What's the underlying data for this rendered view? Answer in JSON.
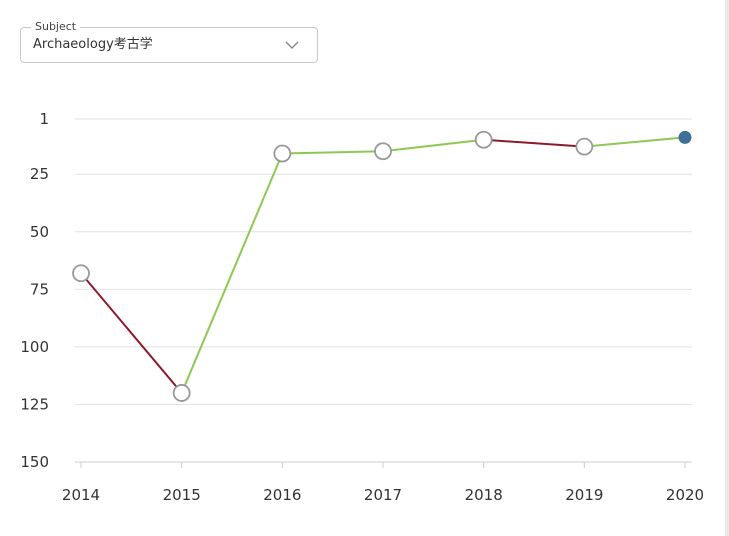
{
  "filter": {
    "legend": "Subject",
    "value": "Archaeology考古学",
    "icon": "chevron-down-icon"
  },
  "chart_data": {
    "type": "line",
    "title": "",
    "xlabel": "",
    "ylabel": "",
    "x": [
      "2014",
      "2015",
      "2016",
      "2017",
      "2018",
      "2019",
      "2020"
    ],
    "values": [
      68,
      120,
      16,
      15,
      10,
      13,
      9
    ],
    "ylim": [
      1,
      150
    ],
    "y_inverted": true,
    "yticks": [
      1,
      25,
      50,
      75,
      100,
      125,
      150
    ],
    "grid": true,
    "colors": {
      "improve": "#8dc852",
      "decline": "#8b1a2b",
      "marker_stroke": "#999999",
      "marker_fill": "#ffffff",
      "last_marker": "#3f6e96",
      "grid": "#e2e2e2",
      "axis": "#cccccc"
    }
  }
}
